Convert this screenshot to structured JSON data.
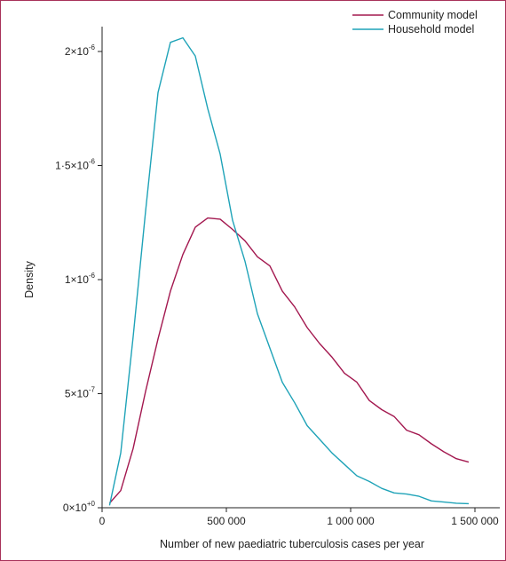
{
  "chart_data": {
    "type": "line",
    "xlabel": "Number of new paediatric tuberculosis cases per year",
    "ylabel": "Density",
    "xlim": [
      0,
      1600000
    ],
    "ylim": [
      0,
      2.2e-06
    ],
    "x_ticks": [
      {
        "value": 0,
        "label": "0"
      },
      {
        "value": 500000,
        "label": "500 000"
      },
      {
        "value": 1000000,
        "label": "1 000 000"
      },
      {
        "value": 1500000,
        "label": "1 500 000"
      }
    ],
    "y_ticks": [
      {
        "value": 0,
        "mant": "0×10",
        "exp": "+0"
      },
      {
        "value": 5e-07,
        "mant": "5×10",
        "exp": "-7"
      },
      {
        "value": 1e-06,
        "mant": "1×10",
        "exp": "-6"
      },
      {
        "value": 1.5e-06,
        "mant": "1·5×10",
        "exp": "-6"
      },
      {
        "value": 2e-06,
        "mant": "2×10",
        "exp": "-6"
      }
    ],
    "grid": false,
    "legend_position": "top-right",
    "series": [
      {
        "name": "Community model",
        "color": "#a3184f",
        "x": [
          30000,
          75000,
          125000,
          175000,
          225000,
          275000,
          325000,
          375000,
          425000,
          475000,
          525000,
          575000,
          625000,
          675000,
          725000,
          775000,
          825000,
          875000,
          925000,
          975000,
          1025000,
          1075000,
          1125000,
          1175000,
          1225000,
          1275000,
          1325000,
          1375000,
          1425000,
          1475000
        ],
        "y": [
          2e-08,
          7.5e-08,
          2.6e-07,
          5.1e-07,
          7.4e-07,
          9.5e-07,
          1.11e-06,
          1.23e-06,
          1.27e-06,
          1.265e-06,
          1.22e-06,
          1.17e-06,
          1.1e-06,
          1.06e-06,
          9.5e-07,
          8.8e-07,
          7.9e-07,
          7.2e-07,
          6.6e-07,
          5.9e-07,
          5.5e-07,
          4.7e-07,
          4.3e-07,
          4e-07,
          3.4e-07,
          3.2e-07,
          2.8e-07,
          2.45e-07,
          2.15e-07,
          2e-07
        ]
      },
      {
        "name": "Household model",
        "color": "#1fa3b8",
        "x": [
          30000,
          75000,
          125000,
          175000,
          225000,
          275000,
          325000,
          375000,
          425000,
          475000,
          525000,
          575000,
          625000,
          675000,
          725000,
          775000,
          825000,
          875000,
          925000,
          975000,
          1025000,
          1075000,
          1125000,
          1175000,
          1225000,
          1275000,
          1325000,
          1375000,
          1425000,
          1475000
        ],
        "y": [
          1e-08,
          2.4e-07,
          7.5e-07,
          1.3e-06,
          1.82e-06,
          2.04e-06,
          2.06e-06,
          1.98e-06,
          1.75e-06,
          1.55e-06,
          1.26e-06,
          1.08e-06,
          8.5e-07,
          7e-07,
          5.5e-07,
          4.6e-07,
          3.6e-07,
          3e-07,
          2.4e-07,
          1.9e-07,
          1.4e-07,
          1.15e-07,
          8.5e-08,
          6.5e-08,
          6e-08,
          5e-08,
          3e-08,
          2.5e-08,
          2e-08,
          1.8e-08
        ]
      }
    ]
  }
}
